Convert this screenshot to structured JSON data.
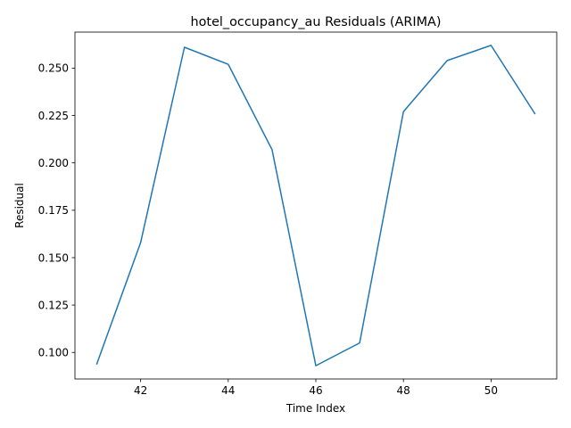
{
  "chart_data": {
    "type": "line",
    "title": "hotel_occupancy_au Residuals (ARIMA)",
    "xlabel": "Time Index",
    "ylabel": "Residual",
    "x": [
      41,
      42,
      43,
      44,
      45,
      46,
      47,
      48,
      49,
      50,
      51
    ],
    "series": [
      {
        "values": [
          0.094,
          0.158,
          0.261,
          0.252,
          0.207,
          0.093,
          0.105,
          0.227,
          0.254,
          0.262,
          0.226
        ]
      }
    ],
    "xlim": [
      40.5,
      51.5
    ],
    "ylim": [
      0.086,
      0.269
    ],
    "xticks": [
      42,
      44,
      46,
      48,
      50
    ],
    "yticks": [
      0.1,
      0.125,
      0.15,
      0.175,
      0.2,
      0.225,
      0.25
    ],
    "xtick_labels": [
      "42",
      "44",
      "46",
      "48",
      "50"
    ],
    "ytick_labels": [
      "0.100",
      "0.125",
      "0.150",
      "0.175",
      "0.200",
      "0.225",
      "0.250"
    ],
    "grid": false,
    "line_color": "#1f77b4"
  }
}
